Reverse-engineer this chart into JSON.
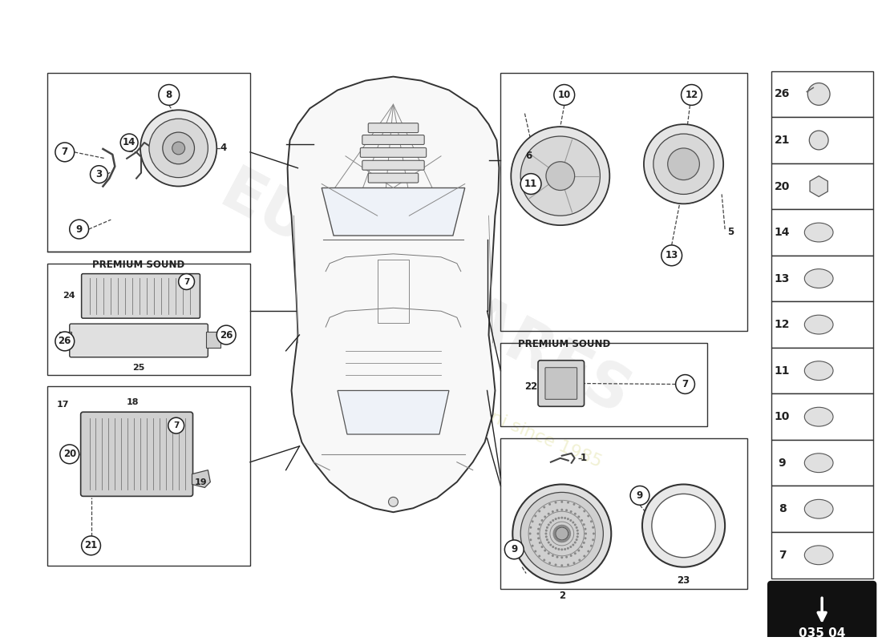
{
  "page_code": "035 04",
  "background_color": "#ffffff",
  "line_color": "#222222",
  "premium_sound_label": "PREMIUM SOUND",
  "watermark_color": "#bbbbbb",
  "watermark_yellow": "#e8e8b0",
  "right_panel_numbers": [
    26,
    21,
    20,
    14,
    13,
    12,
    11,
    10,
    9,
    8,
    7
  ],
  "car_color": "#f8f8f8",
  "car_edge": "#333333"
}
